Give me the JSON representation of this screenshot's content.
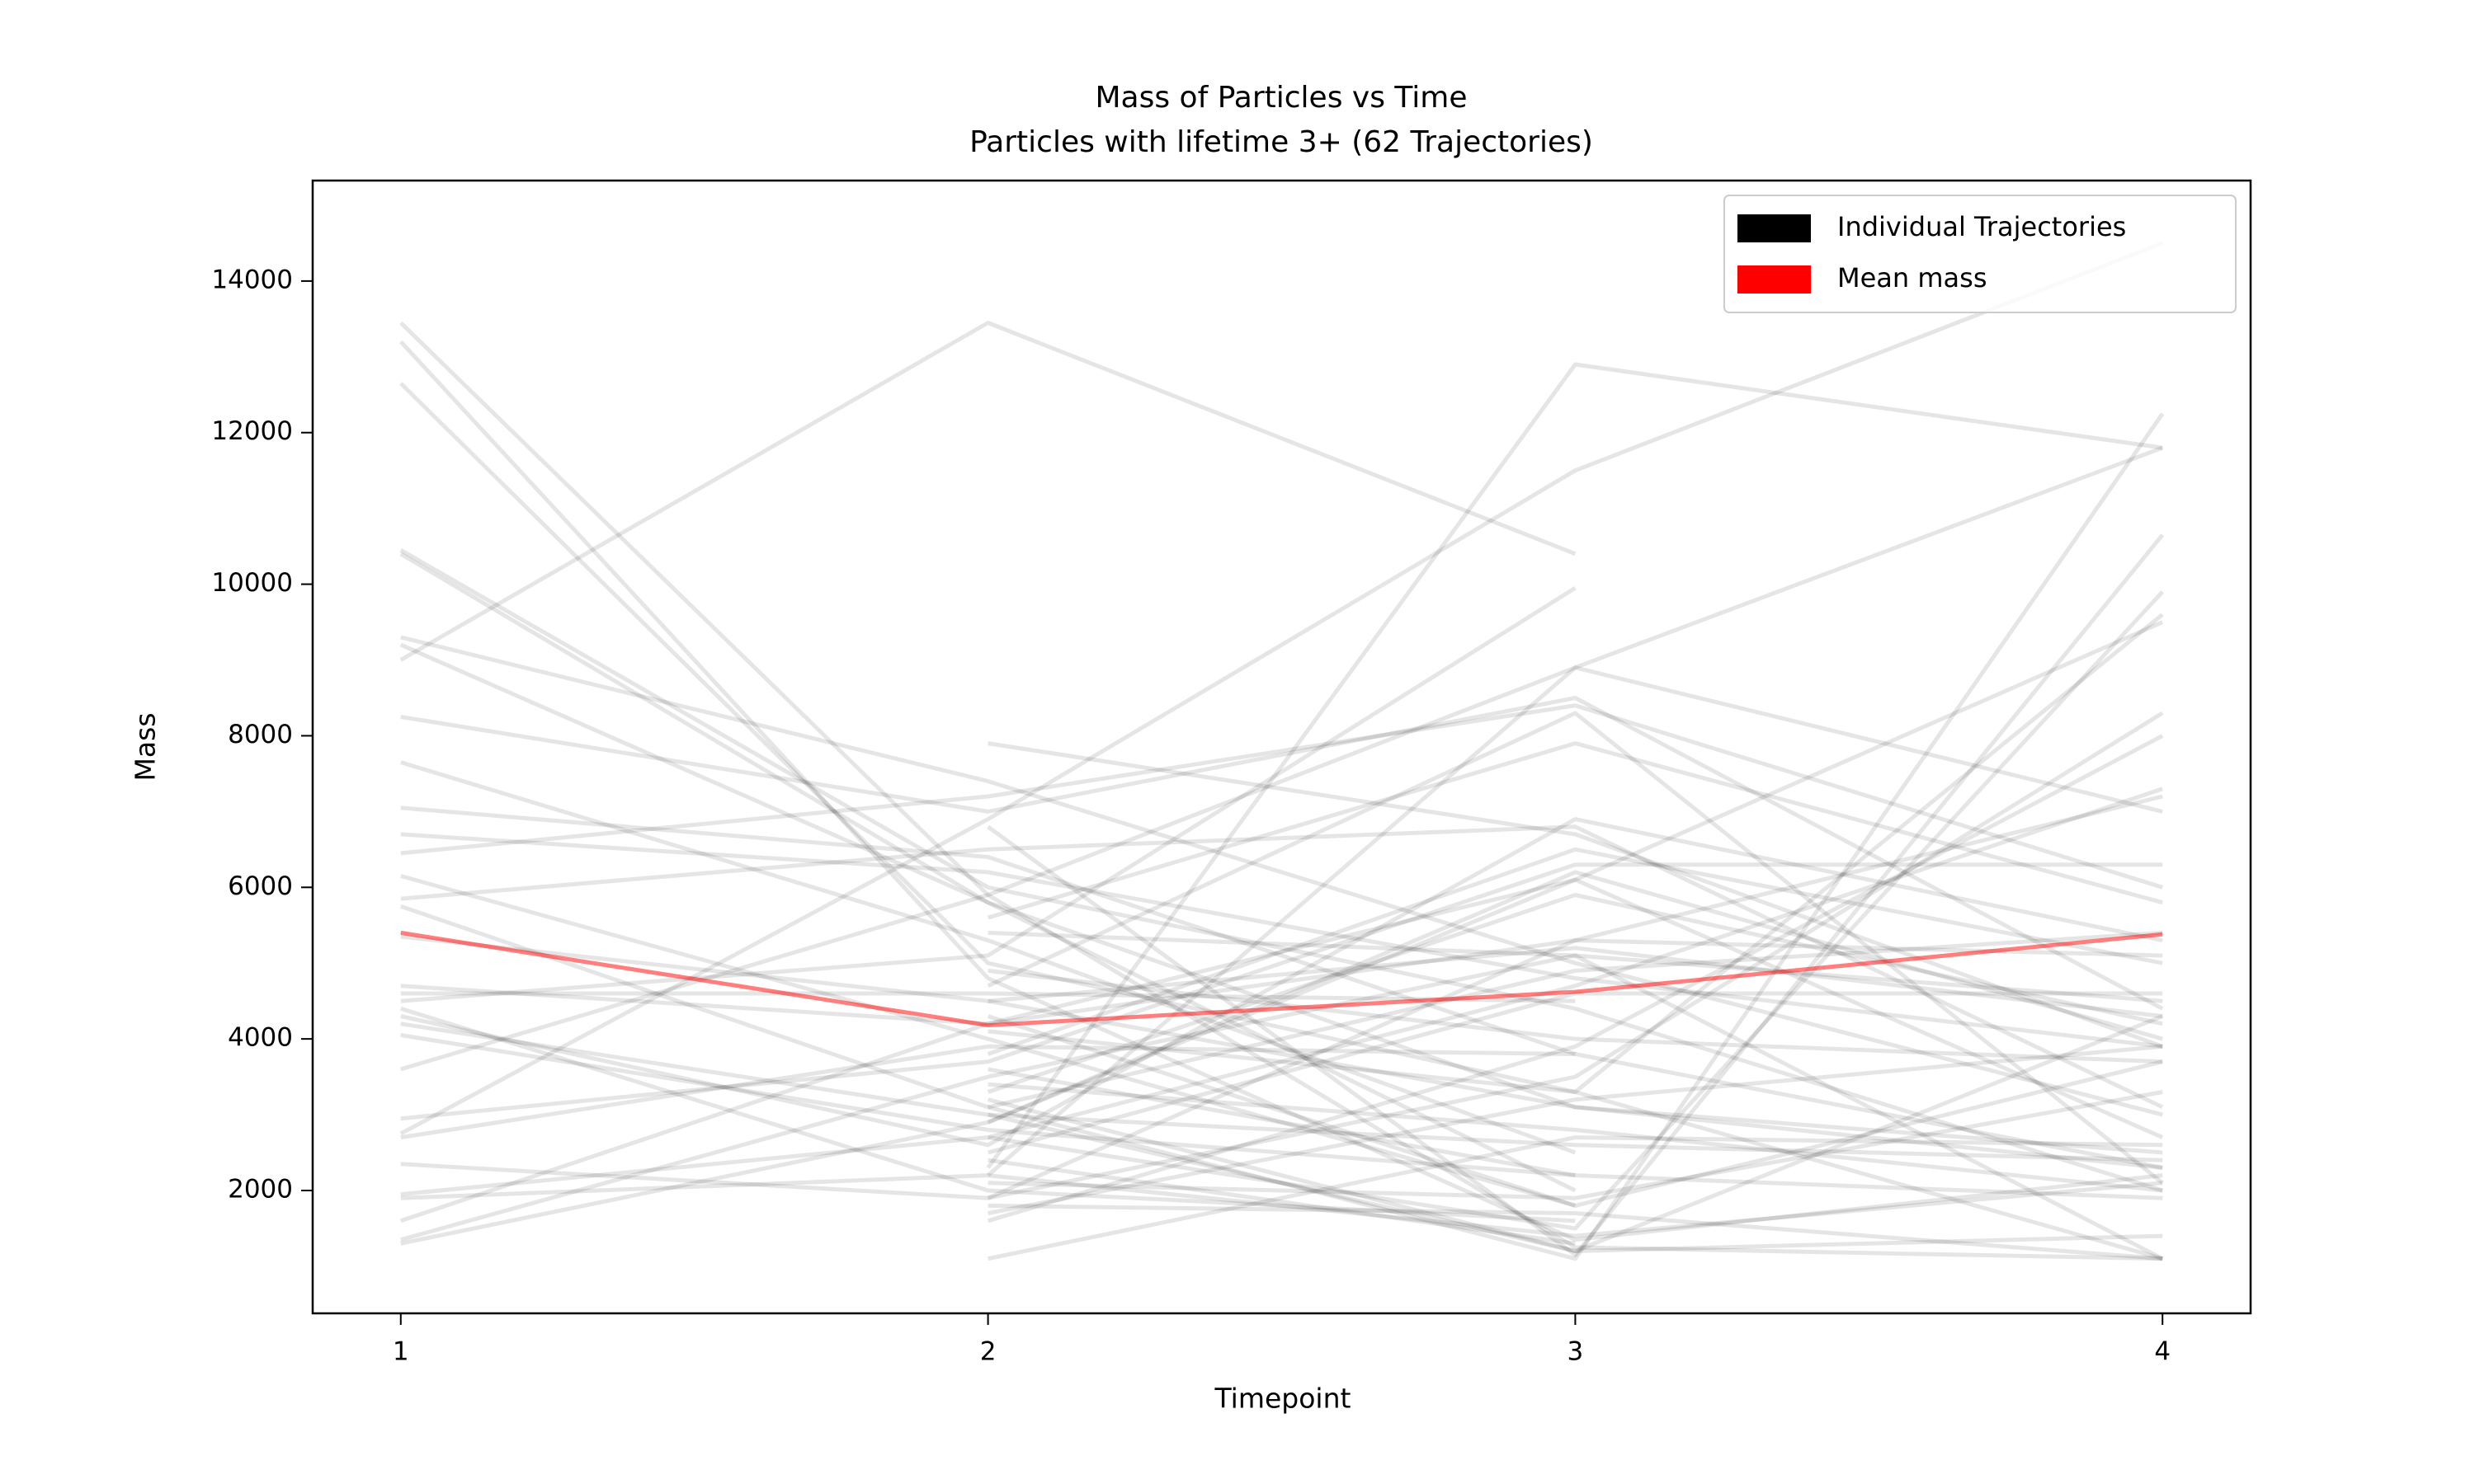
{
  "chart_data": {
    "type": "line",
    "title": "Mass of Particles vs Time",
    "subtitle": "Particles with lifetime 3+ (62 Trajectories)",
    "xlabel": "Timepoint",
    "ylabel": "Mass",
    "x": [
      1,
      2,
      3,
      4
    ],
    "xlim": [
      0.85,
      4.15
    ],
    "xticks": [
      1,
      2,
      3,
      4
    ],
    "ylim": [
      379,
      15326
    ],
    "yticks": [
      2000,
      4000,
      6000,
      8000,
      10000,
      12000,
      14000
    ],
    "grid": false,
    "legend": {
      "loc": "upper right",
      "entries": [
        {
          "name": "Individual Trajectories",
          "color": "#000000"
        },
        {
          "name": "Mean mass",
          "color": "#ff0000"
        }
      ]
    },
    "trajectories": {
      "color": "#000000",
      "alpha": 0.1,
      "values": [
        [
          13450,
          5900,
          1250,
          1100
        ],
        [
          13200,
          4800,
          1350,
          2200
        ],
        [
          12650,
          5000,
          3300,
          1100
        ],
        [
          10450,
          6000,
          4400,
          2000
        ],
        [
          10400,
          5800,
          3100,
          2300
        ],
        [
          9300,
          7400,
          5000,
          3000
        ],
        [
          9200,
          5800,
          2000,
          null
        ],
        [
          9000,
          13450,
          10400,
          null
        ],
        [
          8250,
          7000,
          8500,
          4400
        ],
        [
          7650,
          5300,
          2500,
          null
        ],
        [
          7050,
          6400,
          3800,
          null
        ],
        [
          6700,
          6200,
          4800,
          3900
        ],
        [
          6450,
          7200,
          8400,
          6000
        ],
        [
          6150,
          4000,
          1800,
          null
        ],
        [
          5850,
          6500,
          6800,
          3100
        ],
        [
          5750,
          3100,
          1100,
          12250
        ],
        [
          5350,
          4500,
          5200,
          4300
        ],
        [
          4700,
          4200,
          6100,
          2700
        ],
        [
          4500,
          5100,
          9950,
          null
        ],
        [
          4400,
          2000,
          1600,
          null
        ],
        [
          4300,
          2600,
          6900,
          5300
        ],
        [
          4200,
          3000,
          1200,
          4300
        ],
        [
          4050,
          2800,
          2200,
          null
        ],
        [
          3600,
          5900,
          8900,
          11800
        ],
        [
          2950,
          3700,
          6300,
          6300
        ],
        [
          2750,
          6900,
          11500,
          14500
        ],
        [
          2700,
          3900,
          3800,
          2300
        ],
        [
          2350,
          1900,
          3500,
          8300
        ],
        [
          1950,
          2700,
          4700,
          7300
        ],
        [
          1900,
          2200,
          1400,
          2100
        ],
        [
          1600,
          4200,
          5300,
          7200
        ],
        [
          1350,
          3500,
          5100,
          1100
        ],
        [
          1300,
          2900,
          6100,
          9500
        ],
        [
          4600,
          4600,
          4500,
          null
        ],
        [
          null,
          7900,
          6700,
          3900
        ],
        [
          null,
          6800,
          1150,
          10650
        ],
        [
          null,
          5400,
          5100,
          4500
        ],
        [
          null,
          4900,
          4000,
          3700
        ],
        [
          null,
          4700,
          8300,
          2100
        ],
        [
          null,
          4100,
          3300,
          9600
        ],
        [
          null,
          3800,
          6500,
          5000
        ],
        [
          null,
          3400,
          2800,
          2000
        ],
        [
          null,
          3200,
          1200,
          1400
        ],
        [
          null,
          3000,
          2600,
          2400
        ],
        [
          null,
          2500,
          4600,
          4600
        ],
        [
          null,
          2300,
          12900,
          11800
        ],
        [
          null,
          2100,
          1900,
          3300
        ],
        [
          null,
          1900,
          5300,
          5100
        ],
        [
          null,
          1800,
          1700,
          1100
        ],
        [
          null,
          1600,
          3900,
          8000
        ],
        [
          null,
          1100,
          2700,
          2600
        ],
        [
          null,
          3600,
          2200,
          1900
        ],
        [
          null,
          4500,
          3100,
          2500
        ],
        [
          null,
          2700,
          1500,
          9900
        ],
        [
          null,
          5600,
          7900,
          5800
        ],
        [
          null,
          2400,
          1300,
          null
        ],
        [
          null,
          3300,
          5900,
          4200
        ],
        [
          null,
          2900,
          6200,
          4000
        ],
        [
          null,
          1700,
          3200,
          3900
        ],
        [
          null,
          2200,
          8900,
          7000
        ],
        [
          null,
          4300,
          1800,
          3700
        ],
        [
          null,
          3100,
          4900,
          5400
        ]
      ]
    },
    "mean": {
      "color": "#ff0000",
      "alpha": 0.5,
      "values": [
        5400,
        4180,
        4620,
        5380
      ]
    }
  }
}
